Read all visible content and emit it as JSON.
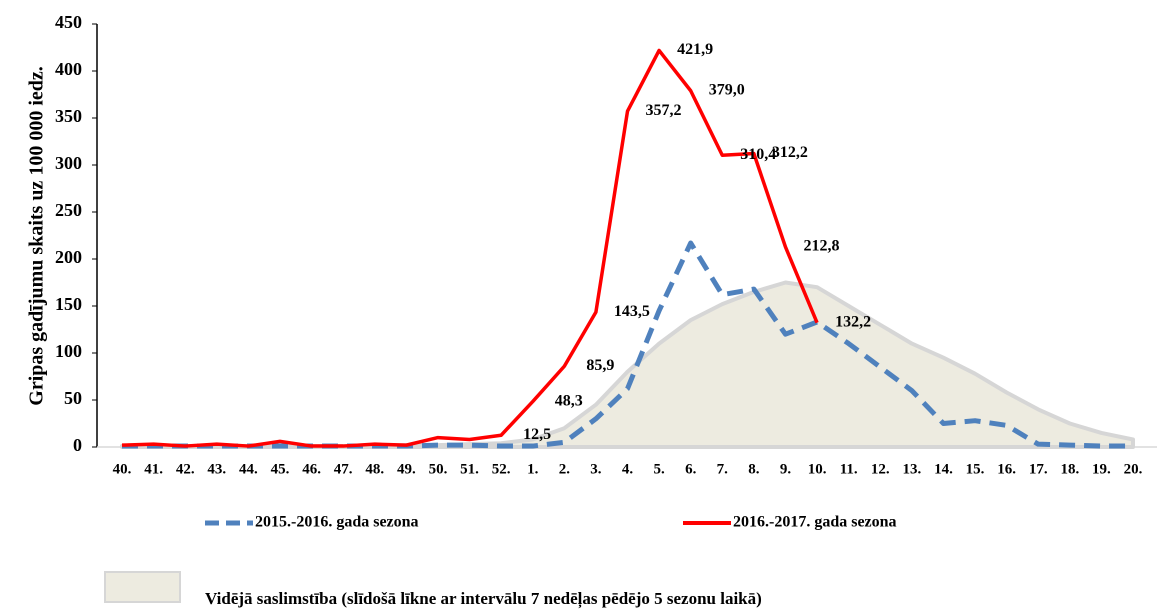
{
  "chart_data": {
    "type": "line",
    "y_label": "Gripas gadījumu skaits uz 100 000 iedz.",
    "categories": [
      "40.",
      "41.",
      "42.",
      "43.",
      "44.",
      "45.",
      "46.",
      "47.",
      "48.",
      "49.",
      "50.",
      "51.",
      "52.",
      "1.",
      "2.",
      "3.",
      "4.",
      "5.",
      "6.",
      "7.",
      "8.",
      "9.",
      "10.",
      "11.",
      "12.",
      "13.",
      "14.",
      "15.",
      "16.",
      "17.",
      "18.",
      "19.",
      "20."
    ],
    "ylim": [
      0,
      450
    ],
    "yticks": [
      0,
      50,
      100,
      150,
      200,
      250,
      300,
      350,
      400,
      450
    ],
    "series": [
      {
        "name": "Vidējā saslimstība (slīdošā līkne ar intervālu 7 nedēļas pēdējo 5 sezonu laikā)",
        "style": "area",
        "color": "#edebe0",
        "values": [
          1,
          1,
          1,
          1,
          1,
          1,
          1,
          1,
          1,
          2,
          2,
          3,
          4,
          8,
          20,
          45,
          80,
          110,
          135,
          152,
          165,
          175,
          170,
          150,
          130,
          110,
          95,
          78,
          58,
          40,
          25,
          15,
          8
        ]
      },
      {
        "name": "2015.-2016. gada sezona",
        "style": "dashed",
        "color": "#4f81bd",
        "values": [
          1,
          1,
          1,
          1,
          1,
          1,
          1,
          1,
          1,
          1,
          2,
          2,
          1,
          1,
          5,
          30,
          62,
          145,
          217,
          162,
          168,
          120,
          133,
          110,
          85,
          60,
          25,
          28,
          23,
          3,
          2,
          1,
          1
        ]
      },
      {
        "name": "2016.-2017. gada sezona",
        "style": "solid",
        "color": "#ff0000",
        "values": [
          2,
          3,
          1,
          3,
          1,
          6,
          1,
          1,
          3,
          2,
          10,
          8,
          12.5,
          48.3,
          85.9,
          143.5,
          357.2,
          421.9,
          379.0,
          310.4,
          312.2,
          212.8,
          132.2,
          null,
          null,
          null,
          null,
          null,
          null,
          null,
          null,
          null,
          null
        ],
        "value_labels": [
          null,
          null,
          null,
          null,
          null,
          null,
          null,
          null,
          null,
          null,
          null,
          null,
          "12,5",
          "48,3",
          "85,9",
          "143,5",
          "357,2",
          "421,9",
          "379,0",
          "310,4",
          "312,2",
          "212,8",
          "132,2",
          null,
          null,
          null,
          null,
          null,
          null,
          null,
          null,
          null,
          null
        ]
      }
    ]
  }
}
